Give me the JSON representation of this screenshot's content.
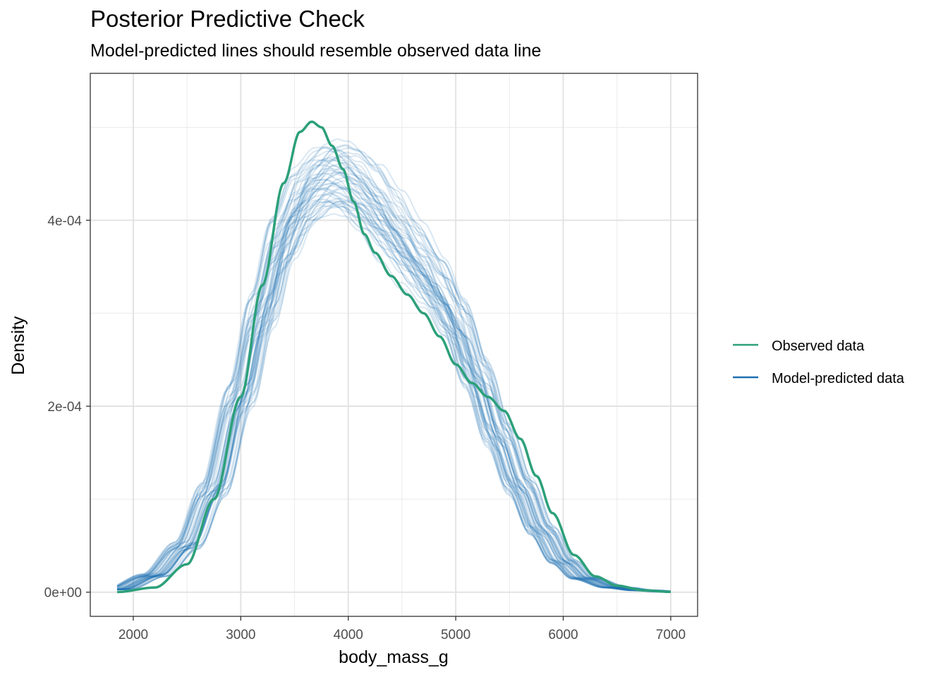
{
  "chart_data": {
    "type": "line",
    "title": "Posterior Predictive Check",
    "subtitle": "Model-predicted lines should resemble observed data line",
    "xlabel": "body_mass_g",
    "ylabel": "Density",
    "xlim": [
      1600,
      7250
    ],
    "ylim": [
      -2.6e-05,
      0.000558
    ],
    "x_ticks": [
      2000,
      3000,
      4000,
      5000,
      6000,
      7000
    ],
    "x_tick_labels": [
      "2000",
      "3000",
      "4000",
      "5000",
      "6000",
      "7000"
    ],
    "y_ticks": [
      0,
      0.0002,
      0.0004
    ],
    "y_tick_labels": [
      "0e+00",
      "2e-04",
      "4e-04"
    ],
    "grid": true,
    "legend_position": "right",
    "series": [
      {
        "name": "Observed data",
        "color": "#2ca07a",
        "x": [
          1850,
          2200,
          2500,
          2750,
          3000,
          3200,
          3400,
          3550,
          3660,
          3750,
          3850,
          3950,
          4050,
          4150,
          4250,
          4400,
          4550,
          4700,
          4850,
          5000,
          5150,
          5300,
          5450,
          5600,
          5750,
          5900,
          6100,
          6300,
          6500,
          6750,
          7000
        ],
        "y": [
          2e-07,
          5e-06,
          3e-05,
          0.0001,
          0.00021,
          0.00033,
          0.00044,
          0.000495,
          0.000506,
          0.0005,
          0.00048,
          0.000455,
          0.00042,
          0.000385,
          0.000365,
          0.00034,
          0.00032,
          0.0003,
          0.000275,
          0.000245,
          0.000225,
          0.00021,
          0.000195,
          0.000165,
          0.000125,
          8.5e-05,
          4e-05,
          1.7e-05,
          7e-06,
          2e-06,
          3e-07
        ]
      },
      {
        "name": "Model-predicted data",
        "color": "#1f6fb2",
        "x": [
          1850,
          2200,
          2500,
          2750,
          3000,
          3200,
          3400,
          3600,
          3800,
          3900,
          4000,
          4200,
          4400,
          4600,
          4800,
          5000,
          5200,
          5400,
          5600,
          5800,
          6000,
          6200,
          6500,
          6750,
          7000
        ],
        "y": [
          3e-06,
          1.8e-05,
          5e-05,
          0.00011,
          0.00021,
          0.0003,
          0.00038,
          0.000428,
          0.000448,
          0.00045,
          0.000445,
          0.000425,
          0.000395,
          0.000365,
          0.000335,
          0.000295,
          0.000235,
          0.00017,
          0.000115,
          6.7e-05,
          3.3e-05,
          1.5e-05,
          5e-06,
          2e-06,
          5e-07
        ]
      }
    ],
    "posterior_draws_shown": 50
  }
}
